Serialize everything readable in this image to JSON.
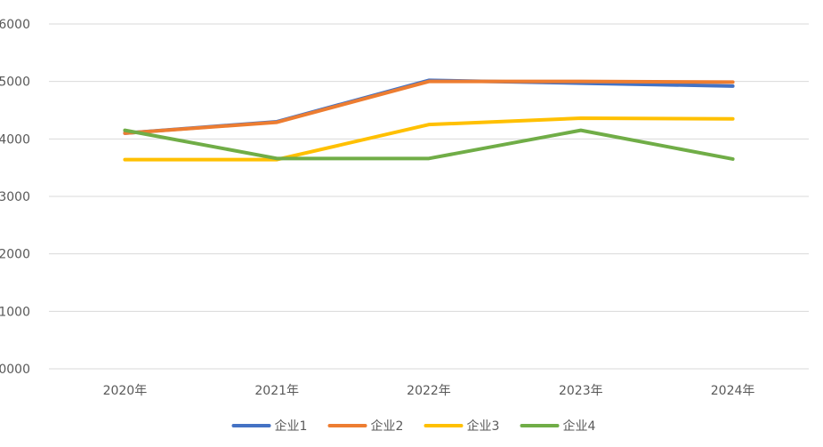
{
  "chart_data": {
    "type": "line",
    "title": "",
    "xlabel": "",
    "ylabel": "",
    "categories": [
      "2020年",
      "2021年",
      "2022年",
      "2023年",
      "2024年"
    ],
    "y_tick_labels": [
      "0000",
      "1000",
      "2000",
      "3000",
      "4000",
      "5000",
      "6000"
    ],
    "ylim": [
      0,
      6
    ],
    "grid": true,
    "legend_position": "bottom",
    "series": [
      {
        "name": "企业1",
        "color": "#4472C4",
        "values": [
          4.1,
          4.3,
          5.02,
          4.97,
          4.92
        ]
      },
      {
        "name": "企业2",
        "color": "#ED7D31",
        "values": [
          4.1,
          4.29,
          5.0,
          5.0,
          4.99
        ]
      },
      {
        "name": "企业3",
        "color": "#FFC000",
        "values": [
          3.64,
          3.64,
          4.25,
          4.36,
          4.35
        ]
      },
      {
        "name": "企业4",
        "color": "#70AD47",
        "values": [
          4.15,
          3.66,
          3.66,
          4.15,
          3.65
        ]
      }
    ]
  }
}
